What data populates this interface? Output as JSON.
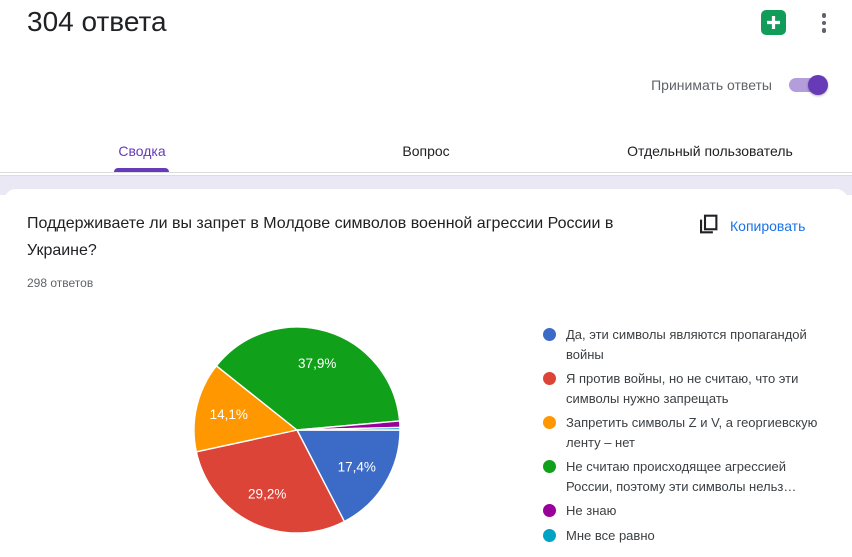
{
  "header": {
    "title": "304 ответа",
    "accepting_label": "Принимать ответы",
    "accepting_on": true,
    "sheets_icon": "create-spreadsheet-icon",
    "menu_icon": "kebab-menu-icon"
  },
  "tabs": [
    {
      "label": "Сводка",
      "active": true
    },
    {
      "label": "Вопрос",
      "active": false
    },
    {
      "label": "Отдельный пользователь",
      "active": false
    }
  ],
  "question": {
    "text": "Поддерживаете ли вы запрет в Молдове символов военной агрессии России в Украине?",
    "responses_count": "298 ответов",
    "copy_label": "Копировать",
    "copy_icon": "copy-icon"
  },
  "chart_data": {
    "type": "pie",
    "title": "Поддерживаете ли вы запрет в Молдове символов военной агрессии России в Украине?",
    "subtitle": "298 ответов",
    "start_angle_deg": 0,
    "direction": "clockwise",
    "legend_position": "right",
    "slices": [
      {
        "label": "Да, эти символы являются пропагандой войны",
        "pct": 17.4,
        "display": "17,4%",
        "color": "#3C6BC7"
      },
      {
        "label": "Я против войны, но не считаю, что эти символы нужно запрещать",
        "pct": 29.2,
        "display": "29,2%",
        "color": "#DB4437"
      },
      {
        "label": "Запретить символы Z и V, а георгиевскую ленту – нет",
        "pct": 14.1,
        "display": "14,1%",
        "color": "#FF9800"
      },
      {
        "label": "Не считаю происходящее агрессией России, поэтому эти символы нельз…",
        "pct": 37.9,
        "display": "37,9%",
        "color": "#10A019"
      },
      {
        "label": "Не знаю",
        "pct": 1.0,
        "display": "",
        "color": "#990099"
      },
      {
        "label": "Мне все равно",
        "pct": 0.4,
        "display": "",
        "color": "#00A3C4"
      }
    ]
  },
  "colors": {
    "accent_purple": "#673AB7",
    "toggle_track": "#B39DDB",
    "link_blue": "#1A73E8",
    "sheets_green": "#129C59",
    "divider": "#DADCE0",
    "band_background": "#EAE8F4",
    "text_primary": "#202124",
    "text_secondary": "#5F6368"
  }
}
